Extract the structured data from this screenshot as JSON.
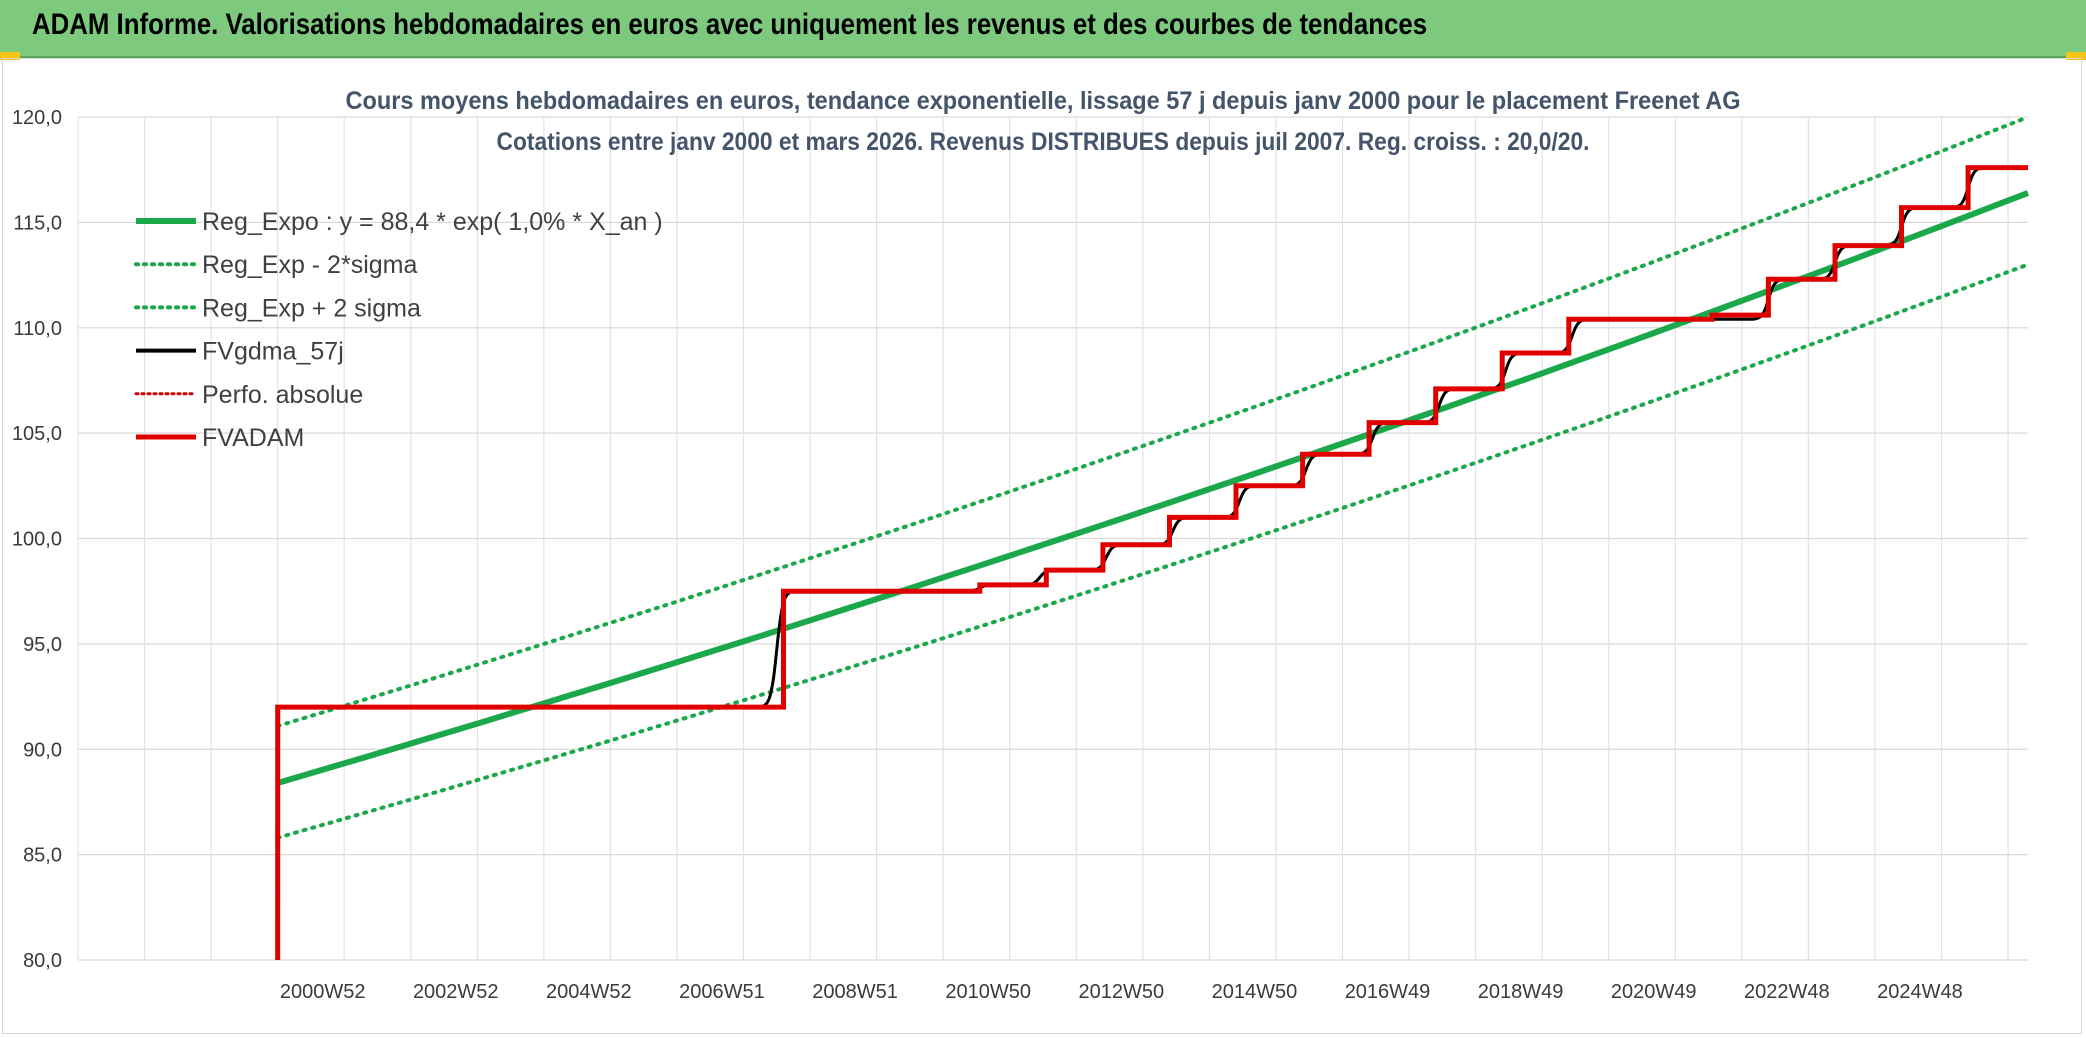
{
  "header": {
    "title": "ADAM Informe. Valorisations hebdomadaires en euros avec uniquement les revenus et des courbes de tendances"
  },
  "colors": {
    "banner": "#7dc97d",
    "reg_expo": "#1aa84a",
    "sigma": "#1aa84a",
    "fvgdma": "#000000",
    "perfo": "#d40000",
    "fvadam": "#e00000",
    "accent": "#f4c518"
  },
  "chart_data": {
    "type": "line",
    "title": "Cours moyens hebdomadaires en euros, tendance exponentielle, lissage 57 j depuis janv 2000 pour le placement Freenet AG",
    "subtitle": "Cotations entre janv 2000 et mars 2026. Revenus DISTRIBUES depuis juil 2007. Reg. croiss. : 20,0/20.",
    "xlabel": "",
    "ylabel": "",
    "ylim": [
      80,
      120
    ],
    "xlim": [
      1998,
      2027.3
    ],
    "grid": true,
    "legend_position": "top-left",
    "y_ticks": [
      "80,0",
      "85,0",
      "90,0",
      "95,0",
      "100,0",
      "105,0",
      "110,0",
      "115,0",
      "120,0"
    ],
    "x_ticks": [
      {
        "label": "2000W52",
        "x": 2001
      },
      {
        "label": "2002W52",
        "x": 2003
      },
      {
        "label": "2004W52",
        "x": 2005
      },
      {
        "label": "2006W51",
        "x": 2007
      },
      {
        "label": "2008W51",
        "x": 2009
      },
      {
        "label": "2010W50",
        "x": 2011
      },
      {
        "label": "2012W50",
        "x": 2013
      },
      {
        "label": "2014W50",
        "x": 2015
      },
      {
        "label": "2016W49",
        "x": 2017
      },
      {
        "label": "2018W49",
        "x": 2019
      },
      {
        "label": "2020W49",
        "x": 2021
      },
      {
        "label": "2022W48",
        "x": 2023
      },
      {
        "label": "2024W48",
        "x": 2025
      }
    ],
    "series": [
      {
        "name": "Reg_Expo : y = 88,4 * exp( 1,0% *  X_an )",
        "style": "solid-thick",
        "x": [
          2001,
          2027.3
        ],
        "y": [
          88.4,
          116.4
        ]
      },
      {
        "name": "Reg_Exp - 2*sigma",
        "style": "dotted",
        "x": [
          2001,
          2027.3
        ],
        "y": [
          85.8,
          113.0
        ]
      },
      {
        "name": "Reg_Exp + 2 sigma",
        "style": "dotted",
        "x": [
          2001,
          2027.3
        ],
        "y": [
          91.1,
          120.0
        ]
      },
      {
        "name": "FVgdma_57j",
        "style": "smooth-steps",
        "start": [
          2001,
          92.0
        ],
        "steps": [
          [
            2008.5,
            97.5
          ],
          [
            2011.55,
            97.8
          ],
          [
            2012.45,
            98.5
          ],
          [
            2013.45,
            99.7
          ],
          [
            2014.45,
            101.0
          ],
          [
            2015.45,
            102.5
          ],
          [
            2016.45,
            104.0
          ],
          [
            2017.45,
            105.5
          ],
          [
            2018.45,
            107.1
          ],
          [
            2019.45,
            108.8
          ],
          [
            2020.45,
            110.4
          ],
          [
            2023.4,
            112.3
          ],
          [
            2024.4,
            113.9
          ],
          [
            2025.4,
            115.7
          ],
          [
            2026.4,
            117.6
          ]
        ],
        "end": 2027.3
      },
      {
        "name": "Perfo. absolue",
        "style": "dotted",
        "x": [],
        "y": []
      },
      {
        "name": "FVADAM",
        "style": "steps",
        "start": [
          2001,
          80.0
        ],
        "points": [
          [
            2001,
            92.0
          ],
          [
            2008.6,
            92.0
          ],
          [
            2008.6,
            97.5
          ],
          [
            2011.55,
            97.5
          ],
          [
            2011.55,
            97.8
          ],
          [
            2012.55,
            97.8
          ],
          [
            2012.55,
            98.5
          ],
          [
            2013.4,
            98.5
          ],
          [
            2013.4,
            99.7
          ],
          [
            2014.4,
            99.7
          ],
          [
            2014.4,
            101.0
          ],
          [
            2015.4,
            101.0
          ],
          [
            2015.4,
            102.5
          ],
          [
            2016.4,
            102.5
          ],
          [
            2016.4,
            104.0
          ],
          [
            2017.4,
            104.0
          ],
          [
            2017.4,
            105.5
          ],
          [
            2018.4,
            105.5
          ],
          [
            2018.4,
            107.1
          ],
          [
            2019.4,
            107.1
          ],
          [
            2019.4,
            108.8
          ],
          [
            2020.4,
            108.8
          ],
          [
            2020.4,
            110.4
          ],
          [
            2022.55,
            110.4
          ],
          [
            2022.55,
            110.6
          ],
          [
            2023.4,
            110.6
          ],
          [
            2023.4,
            112.3
          ],
          [
            2024.4,
            112.3
          ],
          [
            2024.4,
            113.9
          ],
          [
            2025.4,
            113.9
          ],
          [
            2025.4,
            115.7
          ],
          [
            2026.4,
            115.7
          ],
          [
            2026.4,
            117.6
          ],
          [
            2027.3,
            117.6
          ]
        ]
      }
    ]
  }
}
